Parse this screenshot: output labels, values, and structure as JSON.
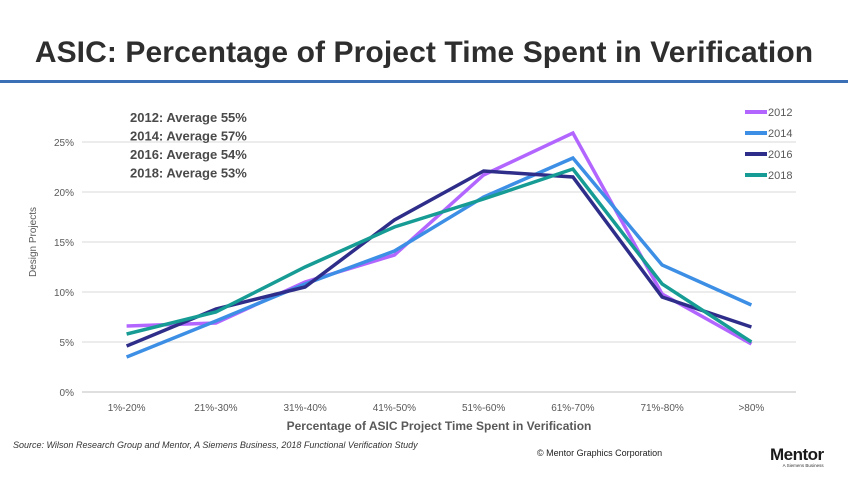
{
  "title": "ASIC: Percentage of Project Time Spent in Verification",
  "source": "Source:   Wilson Research Group and Mentor, A Siemens Business, 2018 Functional Verification  Study",
  "copyright": "© Mentor Graphics Corporation",
  "logo": {
    "name": "Mentor",
    "tagline": "A Siemens Business"
  },
  "annotations": [
    "2012: Average 55%",
    "2014: Average 57%",
    "2016: Average 54%",
    "2018: Average 53%"
  ],
  "colors": {
    "title_rule": "#3b6fb6",
    "grid": "#d9d9d9",
    "axis_text": "#595959"
  },
  "chart_data": {
    "type": "line",
    "title": "ASIC: Percentage of Project Time Spent in Verification",
    "xlabel": "Percentage of ASIC Project Time Spent in Verification",
    "ylabel": "Design Projects",
    "categories": [
      "1%-20%",
      "21%-30%",
      "31%-40%",
      "41%-50%",
      "51%-60%",
      "61%-70%",
      "71%-80%",
      ">80%"
    ],
    "ylim": [
      0,
      25
    ],
    "yticks": [
      0,
      5,
      10,
      15,
      20,
      25
    ],
    "ytick_labels": [
      "0%",
      "5%",
      "10%",
      "15%",
      "20%",
      "25%"
    ],
    "grid": true,
    "legend": "top-right",
    "series": [
      {
        "name": "2012",
        "color": "#b266ff",
        "values": [
          6.6,
          6.9,
          11.0,
          13.7,
          21.7,
          25.9,
          9.8,
          4.8
        ]
      },
      {
        "name": "2014",
        "color": "#3d8fe6",
        "values": [
          3.5,
          7.1,
          10.8,
          14.1,
          19.5,
          23.4,
          12.7,
          8.7
        ]
      },
      {
        "name": "2016",
        "color": "#2e2e8a",
        "values": [
          4.6,
          8.3,
          10.5,
          17.2,
          22.1,
          21.5,
          9.5,
          6.5
        ]
      },
      {
        "name": "2018",
        "color": "#169c94",
        "values": [
          5.8,
          8.0,
          12.5,
          16.5,
          19.3,
          22.3,
          10.8,
          5.0
        ]
      }
    ]
  }
}
